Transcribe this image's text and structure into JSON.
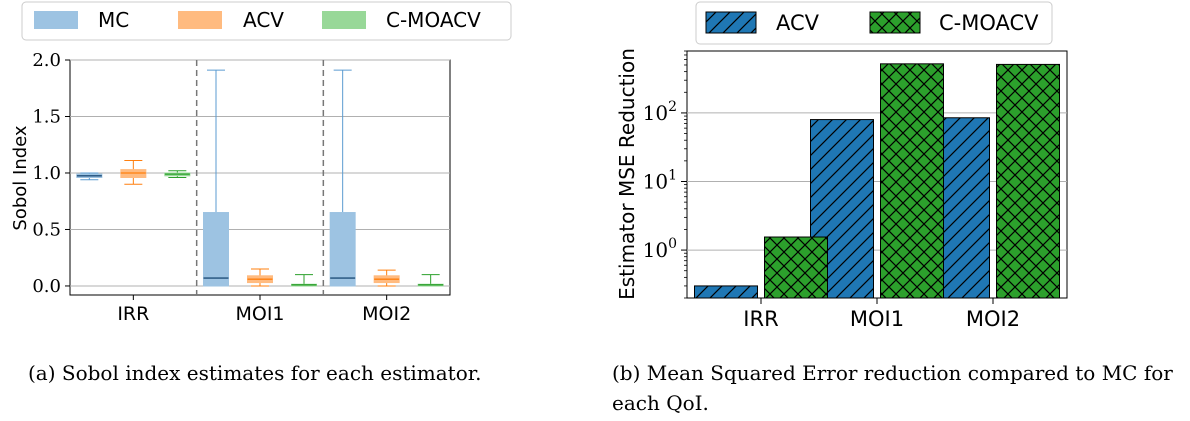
{
  "chart_data": [
    {
      "type": "box",
      "caption": "(a) Sobol index estimates for each estimator.",
      "ylabel": "Sobol Index",
      "xlabel": "",
      "ylim": [
        -0.08,
        2.0
      ],
      "yticks": [
        "0.0",
        "0.5",
        "1.0",
        "1.5",
        "2.0"
      ],
      "ytick_values": [
        0,
        0.5,
        1.0,
        1.5,
        2.0
      ],
      "categories": [
        "IRR",
        "MOI1",
        "MOI2"
      ],
      "grid": "horizontal",
      "legend_position": "top",
      "series": [
        {
          "name": "MC",
          "color": "#9dc3e2",
          "edge": "#5b9bd0",
          "boxes": [
            {
              "whislo": 0.94,
              "q1": 0.96,
              "med": 0.975,
              "q3": 0.99,
              "whishi": 1.0
            },
            {
              "whislo": 0.0,
              "q1": 0.0,
              "med": 0.07,
              "q3": 0.65,
              "whishi": 1.91
            },
            {
              "whislo": 0.0,
              "q1": 0.0,
              "med": 0.07,
              "q3": 0.65,
              "whishi": 1.91
            }
          ]
        },
        {
          "name": "ACV",
          "color": "#ffbb80",
          "edge": "#ff7f0e",
          "boxes": [
            {
              "whislo": 0.9,
              "q1": 0.96,
              "med": 1.0,
              "q3": 1.03,
              "whishi": 1.11
            },
            {
              "whislo": 0.0,
              "q1": 0.03,
              "med": 0.06,
              "q3": 0.09,
              "whishi": 0.15
            },
            {
              "whislo": 0.0,
              "q1": 0.03,
              "med": 0.06,
              "q3": 0.09,
              "whishi": 0.14
            }
          ]
        },
        {
          "name": "C-MOACV",
          "color": "#98d898",
          "edge": "#2ca02c",
          "boxes": [
            {
              "whislo": 0.96,
              "q1": 0.975,
              "med": 0.99,
              "q3": 1.0,
              "whishi": 1.02
            },
            {
              "whislo": 0.0,
              "q1": 0.0,
              "med": 0.01,
              "q3": 0.015,
              "whishi": 0.1
            },
            {
              "whislo": 0.0,
              "q1": 0.0,
              "med": 0.01,
              "q3": 0.015,
              "whishi": 0.1
            }
          ]
        }
      ]
    },
    {
      "type": "bar",
      "caption": "(b) Mean Squared Error reduction compared to MC for each QoI.",
      "ylabel": "Estimator MSE Reduction",
      "xlabel": "",
      "yscale": "log",
      "ylim": [
        0.2,
        800
      ],
      "yticks": [
        "10",
        "10",
        "10"
      ],
      "ytick_exponents": [
        "0",
        "1",
        "2"
      ],
      "ytick_values": [
        1,
        10,
        100
      ],
      "categories": [
        "IRR",
        "MOI1",
        "MOI2"
      ],
      "grid": "horizontal",
      "legend_position": "top",
      "series": [
        {
          "name": "ACV",
          "color": "#1f77b4",
          "hatch": "diagonal",
          "values": [
            0.3,
            80,
            85
          ]
        },
        {
          "name": "C-MOACV",
          "color": "#2ca02c",
          "hatch": "cross",
          "values": [
            1.55,
            520,
            510
          ]
        }
      ]
    }
  ]
}
